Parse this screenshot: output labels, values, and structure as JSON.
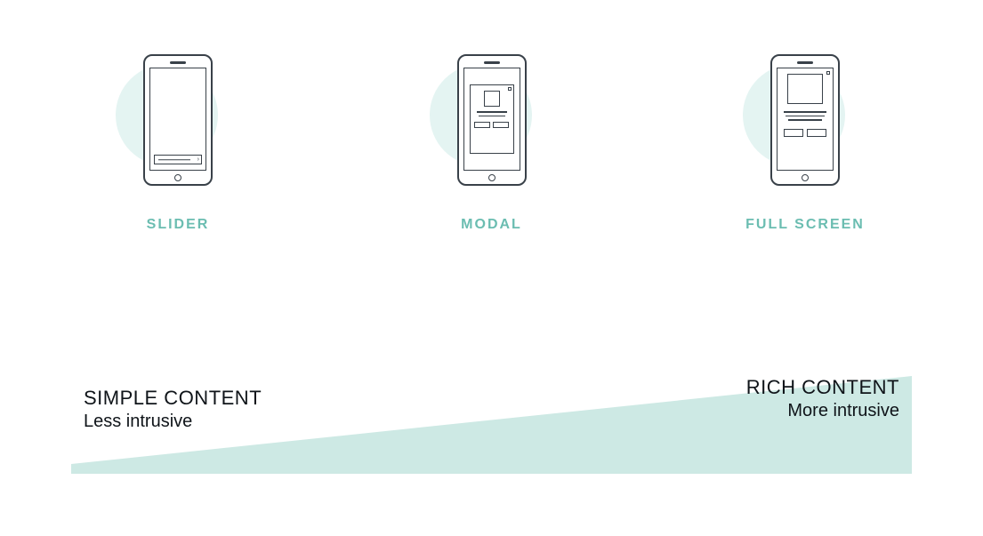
{
  "colors": {
    "circle_bg": "#e4f4f2",
    "stroke": "#394149",
    "teal": "#6bbdb1",
    "triangle": "#cde9e4",
    "text_dark": "#0f1419"
  },
  "phones": [
    {
      "key": "slider",
      "label": "SLIDER"
    },
    {
      "key": "modal",
      "label": "MODAL"
    },
    {
      "key": "fullscreen",
      "label": "FULL SCREEN"
    }
  ],
  "spectrum": {
    "left_title": "SIMPLE CONTENT",
    "left_sub": "Less intrusive",
    "right_title": "RICH CONTENT",
    "right_sub": "More intrusive",
    "triangle_height_left_pct": 10,
    "triangle_height_right_pct": 100
  },
  "typography": {
    "label_fontsize": 16,
    "label_letter_spacing": 2,
    "spec_title_fontsize": 22,
    "spec_sub_fontsize": 20
  }
}
